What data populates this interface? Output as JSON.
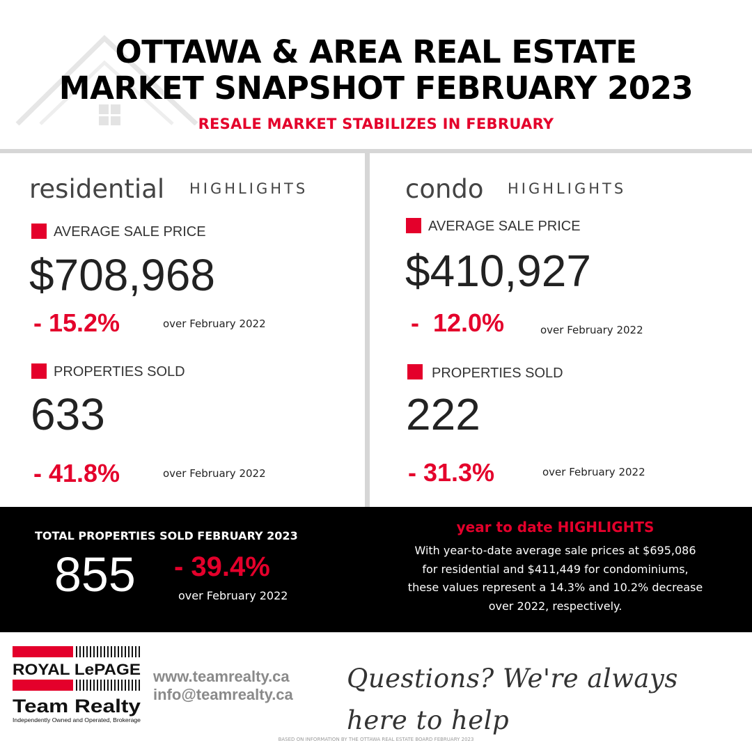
{
  "header": {
    "title_line_1": "OTTAWA & AREA REAL ESTATE",
    "title_line_2": "MARKET SNAPSHOT FEBRUARY 2023",
    "subtitle": "RESALE MARKET STABILIZES IN FEBRUARY"
  },
  "residential": {
    "heading_word": "residential",
    "heading_suffix": "HIGHLIGHTS",
    "avg_price_label": "AVERAGE SALE PRICE",
    "avg_price": "$708,968",
    "avg_price_change": "- 15.2%",
    "avg_price_period": "over February 2022",
    "sold_label": "PROPERTIES SOLD",
    "sold": "633",
    "sold_change": "- 41.8%",
    "sold_period": "over February 2022"
  },
  "condo": {
    "heading_word": "condo",
    "heading_suffix": "HIGHLIGHTS",
    "avg_price_label": "AVERAGE SALE PRICE",
    "avg_price": "$410,927",
    "avg_price_change": "-  12.0%",
    "avg_price_period": "over February 2022",
    "sold_label": "PROPERTIES SOLD",
    "sold": "222",
    "sold_change": "- 31.3%",
    "sold_period": "over February 2022"
  },
  "total": {
    "label": "TOTAL PROPERTIES SOLD FEBRUARY 2023",
    "number": "855",
    "change": "- 39.4%",
    "period": "over February 2022"
  },
  "ytd": {
    "heading": "year to date HIGHLIGHTS",
    "lines": [
      "With year-to-date average sale prices at $695,086",
      "for residential and $411,449 for condominiums,",
      "these values represent a 14.3% and 10.2% decrease",
      "over 2022, respectively."
    ]
  },
  "footer": {
    "logo": {
      "line_1": "ROYAL LePAGE",
      "line_2": "Team Realty",
      "line_3": "Independently Owned and Operated, Brokerage"
    },
    "website": "www.teamrealty.ca",
    "email": "info@teamrealty.ca",
    "tagline": "Questions? We're always here to help",
    "source_note": "BASED ON INFORMATION BY THE OTTAWA REAL ESTATE BOARD FEBRUARY 2023"
  },
  "colors": {
    "accent_red": "#e4002b",
    "band_black": "#000000",
    "divider_gray": "#d6d6d6",
    "contact_gray": "#8a8a8a"
  },
  "icons": {
    "background": "house-outline-icon",
    "bullet": "red-square-bullet"
  }
}
